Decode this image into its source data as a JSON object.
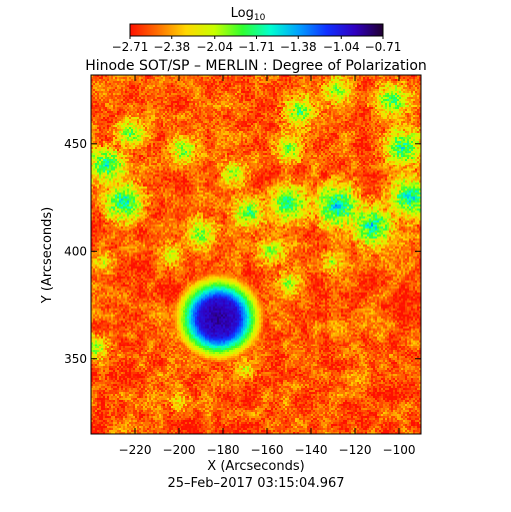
{
  "chart_data": {
    "type": "heatmap",
    "title": "Hinode SOT/SP – MERLIN : Degree of Polarization",
    "xlabel": "X (Arcseconds)",
    "ylabel": "Y (Arcseconds)",
    "xlim": [
      -240,
      -90
    ],
    "ylim": [
      315,
      482
    ],
    "xticks": [
      -220,
      -200,
      -180,
      -160,
      -140,
      -120,
      -100
    ],
    "xtick_labels": [
      "−220",
      "−200",
      "−180",
      "−160",
      "−140",
      "−120",
      "−100"
    ],
    "yticks": [
      350,
      400,
      450
    ],
    "ytick_labels": [
      "350",
      "400",
      "450"
    ],
    "colorbar": {
      "title_base": "Log",
      "title_sub": "10",
      "range": [
        -2.71,
        -0.71
      ],
      "tick_values": [
        -2.71,
        -2.38,
        -2.04,
        -1.71,
        -1.38,
        -1.04,
        -0.71
      ],
      "tick_labels": [
        "−2.71",
        "−2.38",
        "−2.04",
        "−1.71",
        "−1.38",
        "−1.04",
        "−0.71"
      ],
      "colormap": [
        "#ff1000",
        "#ff7000",
        "#ffd800",
        "#c8ff00",
        "#30ff30",
        "#00ffd0",
        "#00a0ff",
        "#1030ff",
        "#3000c0",
        "#200030"
      ]
    },
    "features": [
      {
        "label": "sunspot",
        "x": -182,
        "y": 369,
        "radius": 9,
        "value": -0.85
      },
      {
        "label": "network",
        "x": -128,
        "y": 421,
        "value": -1.45
      },
      {
        "label": "network",
        "x": -112,
        "y": 412,
        "value": -1.5
      },
      {
        "label": "network",
        "x": -150,
        "y": 422,
        "value": -1.6
      },
      {
        "label": "network",
        "x": -168,
        "y": 418,
        "value": -1.75
      },
      {
        "label": "network",
        "x": -190,
        "y": 408,
        "value": -1.8
      },
      {
        "label": "network",
        "x": -225,
        "y": 423,
        "value": -1.55
      },
      {
        "label": "network",
        "x": -233,
        "y": 440,
        "value": -1.6
      },
      {
        "label": "network",
        "x": -222,
        "y": 455,
        "value": -1.8
      },
      {
        "label": "network",
        "x": -198,
        "y": 447,
        "value": -1.85
      },
      {
        "label": "network",
        "x": -175,
        "y": 436,
        "value": -1.9
      },
      {
        "label": "network",
        "x": -150,
        "y": 448,
        "value": -1.85
      },
      {
        "label": "network",
        "x": -145,
        "y": 465,
        "value": -1.75
      },
      {
        "label": "network",
        "x": -128,
        "y": 475,
        "value": -1.85
      },
      {
        "label": "network",
        "x": -103,
        "y": 470,
        "value": -1.7
      },
      {
        "label": "network",
        "x": -98,
        "y": 448,
        "value": -1.6
      },
      {
        "label": "network",
        "x": -95,
        "y": 425,
        "value": -1.5
      },
      {
        "label": "network",
        "x": -158,
        "y": 400,
        "value": -1.9
      },
      {
        "label": "network",
        "x": -150,
        "y": 385,
        "value": -1.95
      },
      {
        "label": "network",
        "x": -130,
        "y": 395,
        "value": -2.0
      },
      {
        "label": "network",
        "x": -204,
        "y": 398,
        "value": -2.0
      },
      {
        "label": "network",
        "x": -234,
        "y": 395,
        "value": -2.05
      },
      {
        "label": "network",
        "x": -200,
        "y": 330,
        "value": -2.1
      },
      {
        "label": "network",
        "x": -170,
        "y": 345,
        "value": -2.1
      },
      {
        "label": "network",
        "x": -238,
        "y": 355,
        "value": -1.9
      }
    ]
  },
  "timestamp": "25–Feb–2017 03:15:04.967"
}
